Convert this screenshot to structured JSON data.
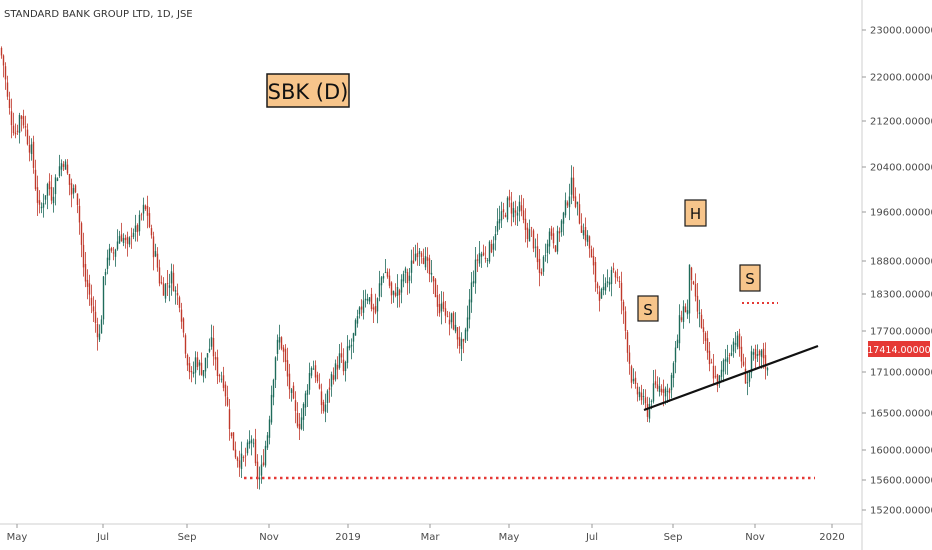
{
  "chart_data": {
    "type": "candlestick",
    "title": "STANDARD BANK GROUP LTD, 1D, JSE",
    "annotation_box": "SBK (D)",
    "pattern_labels": [
      "S",
      "H",
      "S"
    ],
    "last_price_label": "17414.00000",
    "y_ticks": [
      "23000.00000",
      "22000.00000",
      "21200.00000",
      "20400.00000",
      "19600.00000",
      "18800.00000",
      "18300.00000",
      "17700.00000",
      "17100.00000",
      "16500.00000",
      "16000.00000",
      "15600.00000",
      "15200.00000"
    ],
    "x_ticks": [
      "May",
      "Jul",
      "Sep",
      "Nov",
      "2019",
      "Mar",
      "May",
      "Jul",
      "Sep",
      "Nov",
      "2020"
    ],
    "close_path": [
      [
        0,
        22700
      ],
      [
        4,
        22400
      ],
      [
        8,
        21800
      ],
      [
        12,
        21500
      ],
      [
        16,
        21300
      ],
      [
        20,
        21650
      ],
      [
        24,
        21500
      ],
      [
        28,
        21200
      ],
      [
        32,
        21000
      ],
      [
        36,
        20400
      ],
      [
        40,
        20000
      ],
      [
        44,
        20300
      ],
      [
        48,
        20500
      ],
      [
        52,
        20300
      ],
      [
        56,
        20600
      ],
      [
        60,
        20800
      ],
      [
        64,
        20900
      ],
      [
        68,
        20600
      ],
      [
        72,
        20300
      ],
      [
        76,
        20500
      ],
      [
        80,
        19800
      ],
      [
        84,
        19000
      ],
      [
        88,
        18800
      ],
      [
        92,
        18500
      ],
      [
        96,
        18200
      ],
      [
        100,
        18000
      ],
      [
        104,
        19000
      ],
      [
        108,
        19400
      ],
      [
        112,
        19300
      ],
      [
        116,
        19500
      ],
      [
        120,
        19700
      ],
      [
        124,
        19600
      ],
      [
        128,
        19400
      ],
      [
        132,
        19800
      ],
      [
        136,
        19700
      ],
      [
        140,
        19900
      ],
      [
        144,
        20100
      ],
      [
        148,
        20000
      ],
      [
        152,
        19500
      ],
      [
        156,
        19300
      ],
      [
        160,
        18900
      ],
      [
        164,
        18800
      ],
      [
        168,
        18900
      ],
      [
        172,
        19000
      ],
      [
        176,
        18700
      ],
      [
        180,
        18600
      ],
      [
        184,
        18000
      ],
      [
        188,
        17600
      ],
      [
        192,
        17300
      ],
      [
        196,
        17700
      ],
      [
        200,
        17500
      ],
      [
        204,
        17500
      ],
      [
        208,
        17800
      ],
      [
        212,
        17900
      ],
      [
        216,
        17500
      ],
      [
        220,
        17400
      ],
      [
        224,
        17300
      ],
      [
        228,
        16800
      ],
      [
        232,
        16300
      ],
      [
        236,
        16100
      ],
      [
        240,
        16000
      ],
      [
        244,
        16000
      ],
      [
        248,
        16200
      ],
      [
        252,
        16400
      ],
      [
        256,
        15800
      ],
      [
        260,
        15700
      ],
      [
        264,
        16100
      ],
      [
        268,
        16500
      ],
      [
        272,
        17200
      ],
      [
        276,
        17800
      ],
      [
        280,
        18000
      ],
      [
        284,
        17700
      ],
      [
        288,
        17300
      ],
      [
        292,
        17000
      ],
      [
        296,
        16700
      ],
      [
        300,
        16600
      ],
      [
        304,
        16900
      ],
      [
        308,
        17300
      ],
      [
        312,
        17600
      ],
      [
        316,
        17400
      ],
      [
        320,
        17000
      ],
      [
        324,
        16800
      ],
      [
        328,
        17100
      ],
      [
        332,
        17400
      ],
      [
        336,
        17500
      ],
      [
        340,
        17700
      ],
      [
        344,
        17400
      ],
      [
        348,
        17800
      ],
      [
        352,
        17900
      ],
      [
        356,
        18200
      ],
      [
        360,
        18400
      ],
      [
        364,
        18700
      ],
      [
        368,
        18700
      ],
      [
        372,
        18500
      ],
      [
        376,
        18400
      ],
      [
        380,
        18900
      ],
      [
        384,
        19100
      ],
      [
        388,
        19000
      ],
      [
        392,
        18600
      ],
      [
        396,
        18800
      ],
      [
        400,
        18700
      ],
      [
        404,
        19100
      ],
      [
        408,
        18900
      ],
      [
        412,
        19200
      ],
      [
        416,
        19400
      ],
      [
        420,
        19500
      ],
      [
        424,
        19300
      ],
      [
        428,
        19100
      ],
      [
        432,
        18900
      ],
      [
        436,
        18700
      ],
      [
        440,
        18400
      ],
      [
        444,
        18600
      ],
      [
        448,
        18200
      ],
      [
        452,
        18300
      ],
      [
        456,
        18100
      ],
      [
        460,
        17900
      ],
      [
        464,
        17800
      ],
      [
        468,
        18400
      ],
      [
        472,
        18900
      ],
      [
        476,
        19200
      ],
      [
        480,
        19400
      ],
      [
        484,
        19300
      ],
      [
        488,
        19400
      ],
      [
        492,
        19500
      ],
      [
        496,
        19800
      ],
      [
        500,
        19900
      ],
      [
        504,
        20000
      ],
      [
        508,
        20200
      ],
      [
        512,
        20100
      ],
      [
        516,
        20000
      ],
      [
        520,
        20100
      ],
      [
        524,
        19800
      ],
      [
        528,
        19700
      ],
      [
        532,
        19700
      ],
      [
        536,
        19300
      ],
      [
        540,
        19000
      ],
      [
        544,
        19300
      ],
      [
        548,
        19700
      ],
      [
        552,
        19700
      ],
      [
        556,
        19500
      ],
      [
        560,
        19800
      ],
      [
        564,
        20000
      ],
      [
        568,
        20300
      ],
      [
        572,
        20500
      ],
      [
        576,
        20200
      ],
      [
        580,
        19900
      ],
      [
        584,
        19700
      ],
      [
        588,
        19600
      ],
      [
        592,
        19200
      ],
      [
        596,
        18900
      ],
      [
        600,
        18700
      ],
      [
        604,
        18700
      ],
      [
        608,
        18900
      ],
      [
        612,
        19200
      ],
      [
        616,
        19000
      ],
      [
        620,
        18800
      ],
      [
        624,
        18300
      ],
      [
        628,
        17800
      ],
      [
        632,
        17300
      ],
      [
        636,
        17100
      ],
      [
        640,
        17100
      ],
      [
        644,
        16900
      ],
      [
        648,
        16800
      ],
      [
        652,
        17100
      ],
      [
        656,
        17200
      ],
      [
        660,
        17200
      ],
      [
        664,
        17200
      ],
      [
        668,
        17100
      ],
      [
        672,
        17400
      ],
      [
        676,
        17800
      ],
      [
        680,
        18300
      ],
      [
        684,
        18500
      ],
      [
        688,
        18400
      ],
      [
        690,
        19300
      ],
      [
        692,
        18900
      ],
      [
        696,
        18500
      ],
      [
        700,
        18300
      ],
      [
        704,
        18000
      ],
      [
        708,
        17600
      ],
      [
        712,
        17500
      ],
      [
        716,
        17300
      ],
      [
        720,
        17300
      ],
      [
        724,
        17600
      ],
      [
        728,
        17700
      ],
      [
        732,
        17900
      ],
      [
        736,
        18000
      ],
      [
        740,
        17800
      ],
      [
        744,
        17400
      ],
      [
        748,
        17300
      ],
      [
        752,
        17700
      ],
      [
        756,
        17600
      ],
      [
        760,
        17700
      ],
      [
        764,
        17700
      ],
      [
        768,
        17400
      ]
    ],
    "ylim": [
      15050,
      23200
    ]
  }
}
